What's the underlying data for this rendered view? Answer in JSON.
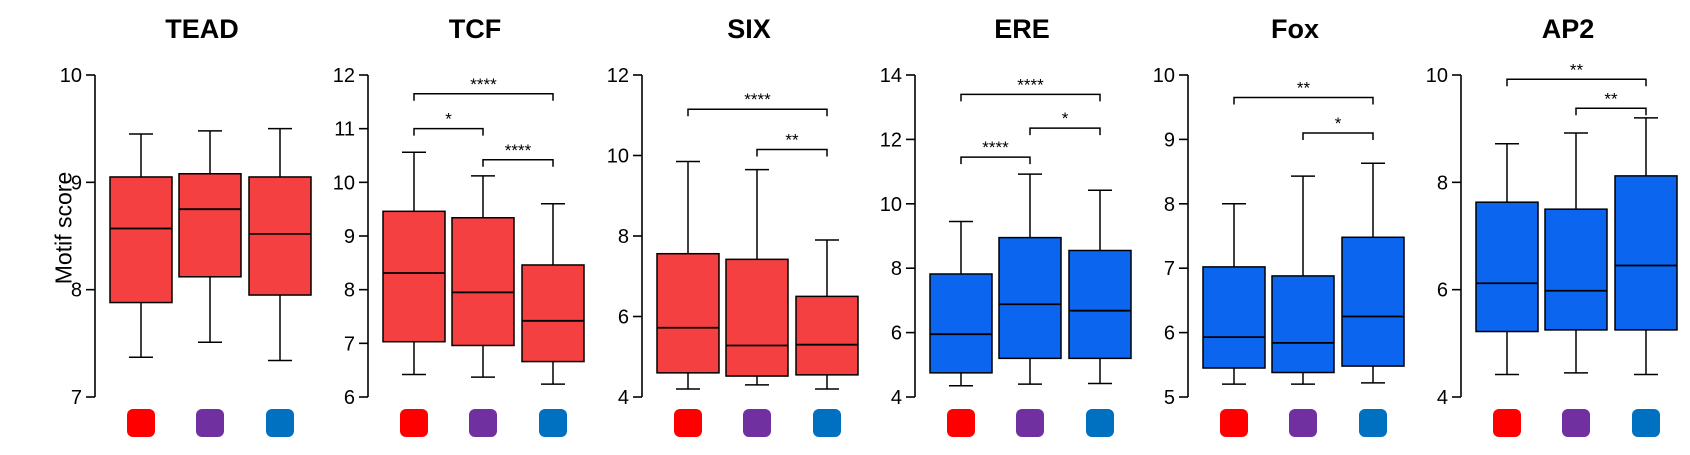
{
  "figure": {
    "ylabel": "Motif score"
  },
  "colors": {
    "red": "#f44040",
    "blue": "#0b65ee",
    "key_red": "#ff0000",
    "key_purple": "#7030a0",
    "key_blue": "#0070c0"
  },
  "chart_data": [
    {
      "type": "box",
      "title": "TEAD",
      "ylim": [
        7,
        10
      ],
      "yticks": [
        7,
        8,
        9,
        10
      ],
      "fill": "red",
      "groups": [
        "red",
        "purple",
        "blue"
      ],
      "boxes": [
        {
          "min": 7.37,
          "q1": 7.88,
          "median": 8.57,
          "q3": 9.05,
          "max": 9.45
        },
        {
          "min": 7.51,
          "q1": 8.12,
          "median": 8.75,
          "q3": 9.08,
          "max": 9.48
        },
        {
          "min": 7.34,
          "q1": 7.95,
          "median": 8.52,
          "q3": 9.05,
          "max": 9.5
        }
      ],
      "significance": []
    },
    {
      "type": "box",
      "title": "TCF",
      "ylim": [
        6,
        12
      ],
      "yticks": [
        6,
        7,
        8,
        9,
        10,
        11,
        12
      ],
      "fill": "red",
      "groups": [
        "red",
        "purple",
        "blue"
      ],
      "boxes": [
        {
          "min": 6.42,
          "q1": 7.03,
          "median": 8.31,
          "q3": 9.46,
          "max": 10.56
        },
        {
          "min": 6.37,
          "q1": 6.96,
          "median": 7.95,
          "q3": 9.34,
          "max": 10.12
        },
        {
          "min": 6.24,
          "q1": 6.66,
          "median": 7.42,
          "q3": 8.46,
          "max": 9.6
        }
      ],
      "significance": [
        {
          "from": 0,
          "to": 2,
          "y": 11.65,
          "label": "****"
        },
        {
          "from": 0,
          "to": 1,
          "y": 11.0,
          "label": "*"
        },
        {
          "from": 1,
          "to": 2,
          "y": 10.42,
          "label": "****"
        }
      ]
    },
    {
      "type": "box",
      "title": "SIX",
      "ylim": [
        4,
        12
      ],
      "yticks": [
        4,
        6,
        8,
        10,
        12
      ],
      "fill": "red",
      "groups": [
        "red",
        "purple",
        "blue"
      ],
      "boxes": [
        {
          "min": 4.2,
          "q1": 4.6,
          "median": 5.72,
          "q3": 7.56,
          "max": 9.85
        },
        {
          "min": 4.3,
          "q1": 4.52,
          "median": 5.28,
          "q3": 7.42,
          "max": 9.65
        },
        {
          "min": 4.2,
          "q1": 4.55,
          "median": 5.3,
          "q3": 6.5,
          "max": 7.9
        }
      ],
      "significance": [
        {
          "from": 0,
          "to": 2,
          "y": 11.15,
          "label": "****"
        },
        {
          "from": 1,
          "to": 2,
          "y": 10.15,
          "label": "**"
        }
      ]
    },
    {
      "type": "box",
      "title": "ERE",
      "ylim": [
        4,
        14
      ],
      "yticks": [
        4,
        6,
        8,
        10,
        12,
        14
      ],
      "fill": "blue",
      "groups": [
        "red",
        "purple",
        "blue"
      ],
      "boxes": [
        {
          "min": 4.35,
          "q1": 4.75,
          "median": 5.95,
          "q3": 7.82,
          "max": 9.45
        },
        {
          "min": 4.4,
          "q1": 5.2,
          "median": 6.88,
          "q3": 8.95,
          "max": 10.92
        },
        {
          "min": 4.42,
          "q1": 5.2,
          "median": 6.68,
          "q3": 8.55,
          "max": 10.42
        }
      ],
      "significance": [
        {
          "from": 0,
          "to": 2,
          "y": 13.4,
          "label": "****"
        },
        {
          "from": 1,
          "to": 2,
          "y": 12.35,
          "label": "*"
        },
        {
          "from": 0,
          "to": 1,
          "y": 11.45,
          "label": "****"
        }
      ]
    },
    {
      "type": "box",
      "title": "Fox",
      "ylim": [
        5,
        10
      ],
      "yticks": [
        5,
        6,
        7,
        8,
        9,
        10
      ],
      "fill": "blue",
      "groups": [
        "red",
        "purple",
        "blue"
      ],
      "boxes": [
        {
          "min": 5.2,
          "q1": 5.45,
          "median": 5.93,
          "q3": 7.02,
          "max": 8.0
        },
        {
          "min": 5.2,
          "q1": 5.38,
          "median": 5.84,
          "q3": 6.88,
          "max": 8.43
        },
        {
          "min": 5.22,
          "q1": 5.48,
          "median": 6.25,
          "q3": 7.48,
          "max": 8.63
        }
      ],
      "significance": [
        {
          "from": 0,
          "to": 2,
          "y": 9.65,
          "label": "**"
        },
        {
          "from": 1,
          "to": 2,
          "y": 9.1,
          "label": "*"
        }
      ]
    },
    {
      "type": "box",
      "title": "AP2",
      "ylim": [
        4,
        10
      ],
      "yticks": [
        4,
        6,
        8,
        10
      ],
      "fill": "blue",
      "groups": [
        "red",
        "purple",
        "blue"
      ],
      "boxes": [
        {
          "min": 4.42,
          "q1": 5.22,
          "median": 6.12,
          "q3": 7.63,
          "max": 8.72
        },
        {
          "min": 4.45,
          "q1": 5.25,
          "median": 5.98,
          "q3": 7.5,
          "max": 8.92
        },
        {
          "min": 4.42,
          "q1": 5.25,
          "median": 6.45,
          "q3": 8.12,
          "max": 9.2
        }
      ],
      "significance": [
        {
          "from": 0,
          "to": 2,
          "y": 9.92,
          "label": "**"
        },
        {
          "from": 1,
          "to": 2,
          "y": 9.38,
          "label": "**"
        }
      ]
    }
  ]
}
